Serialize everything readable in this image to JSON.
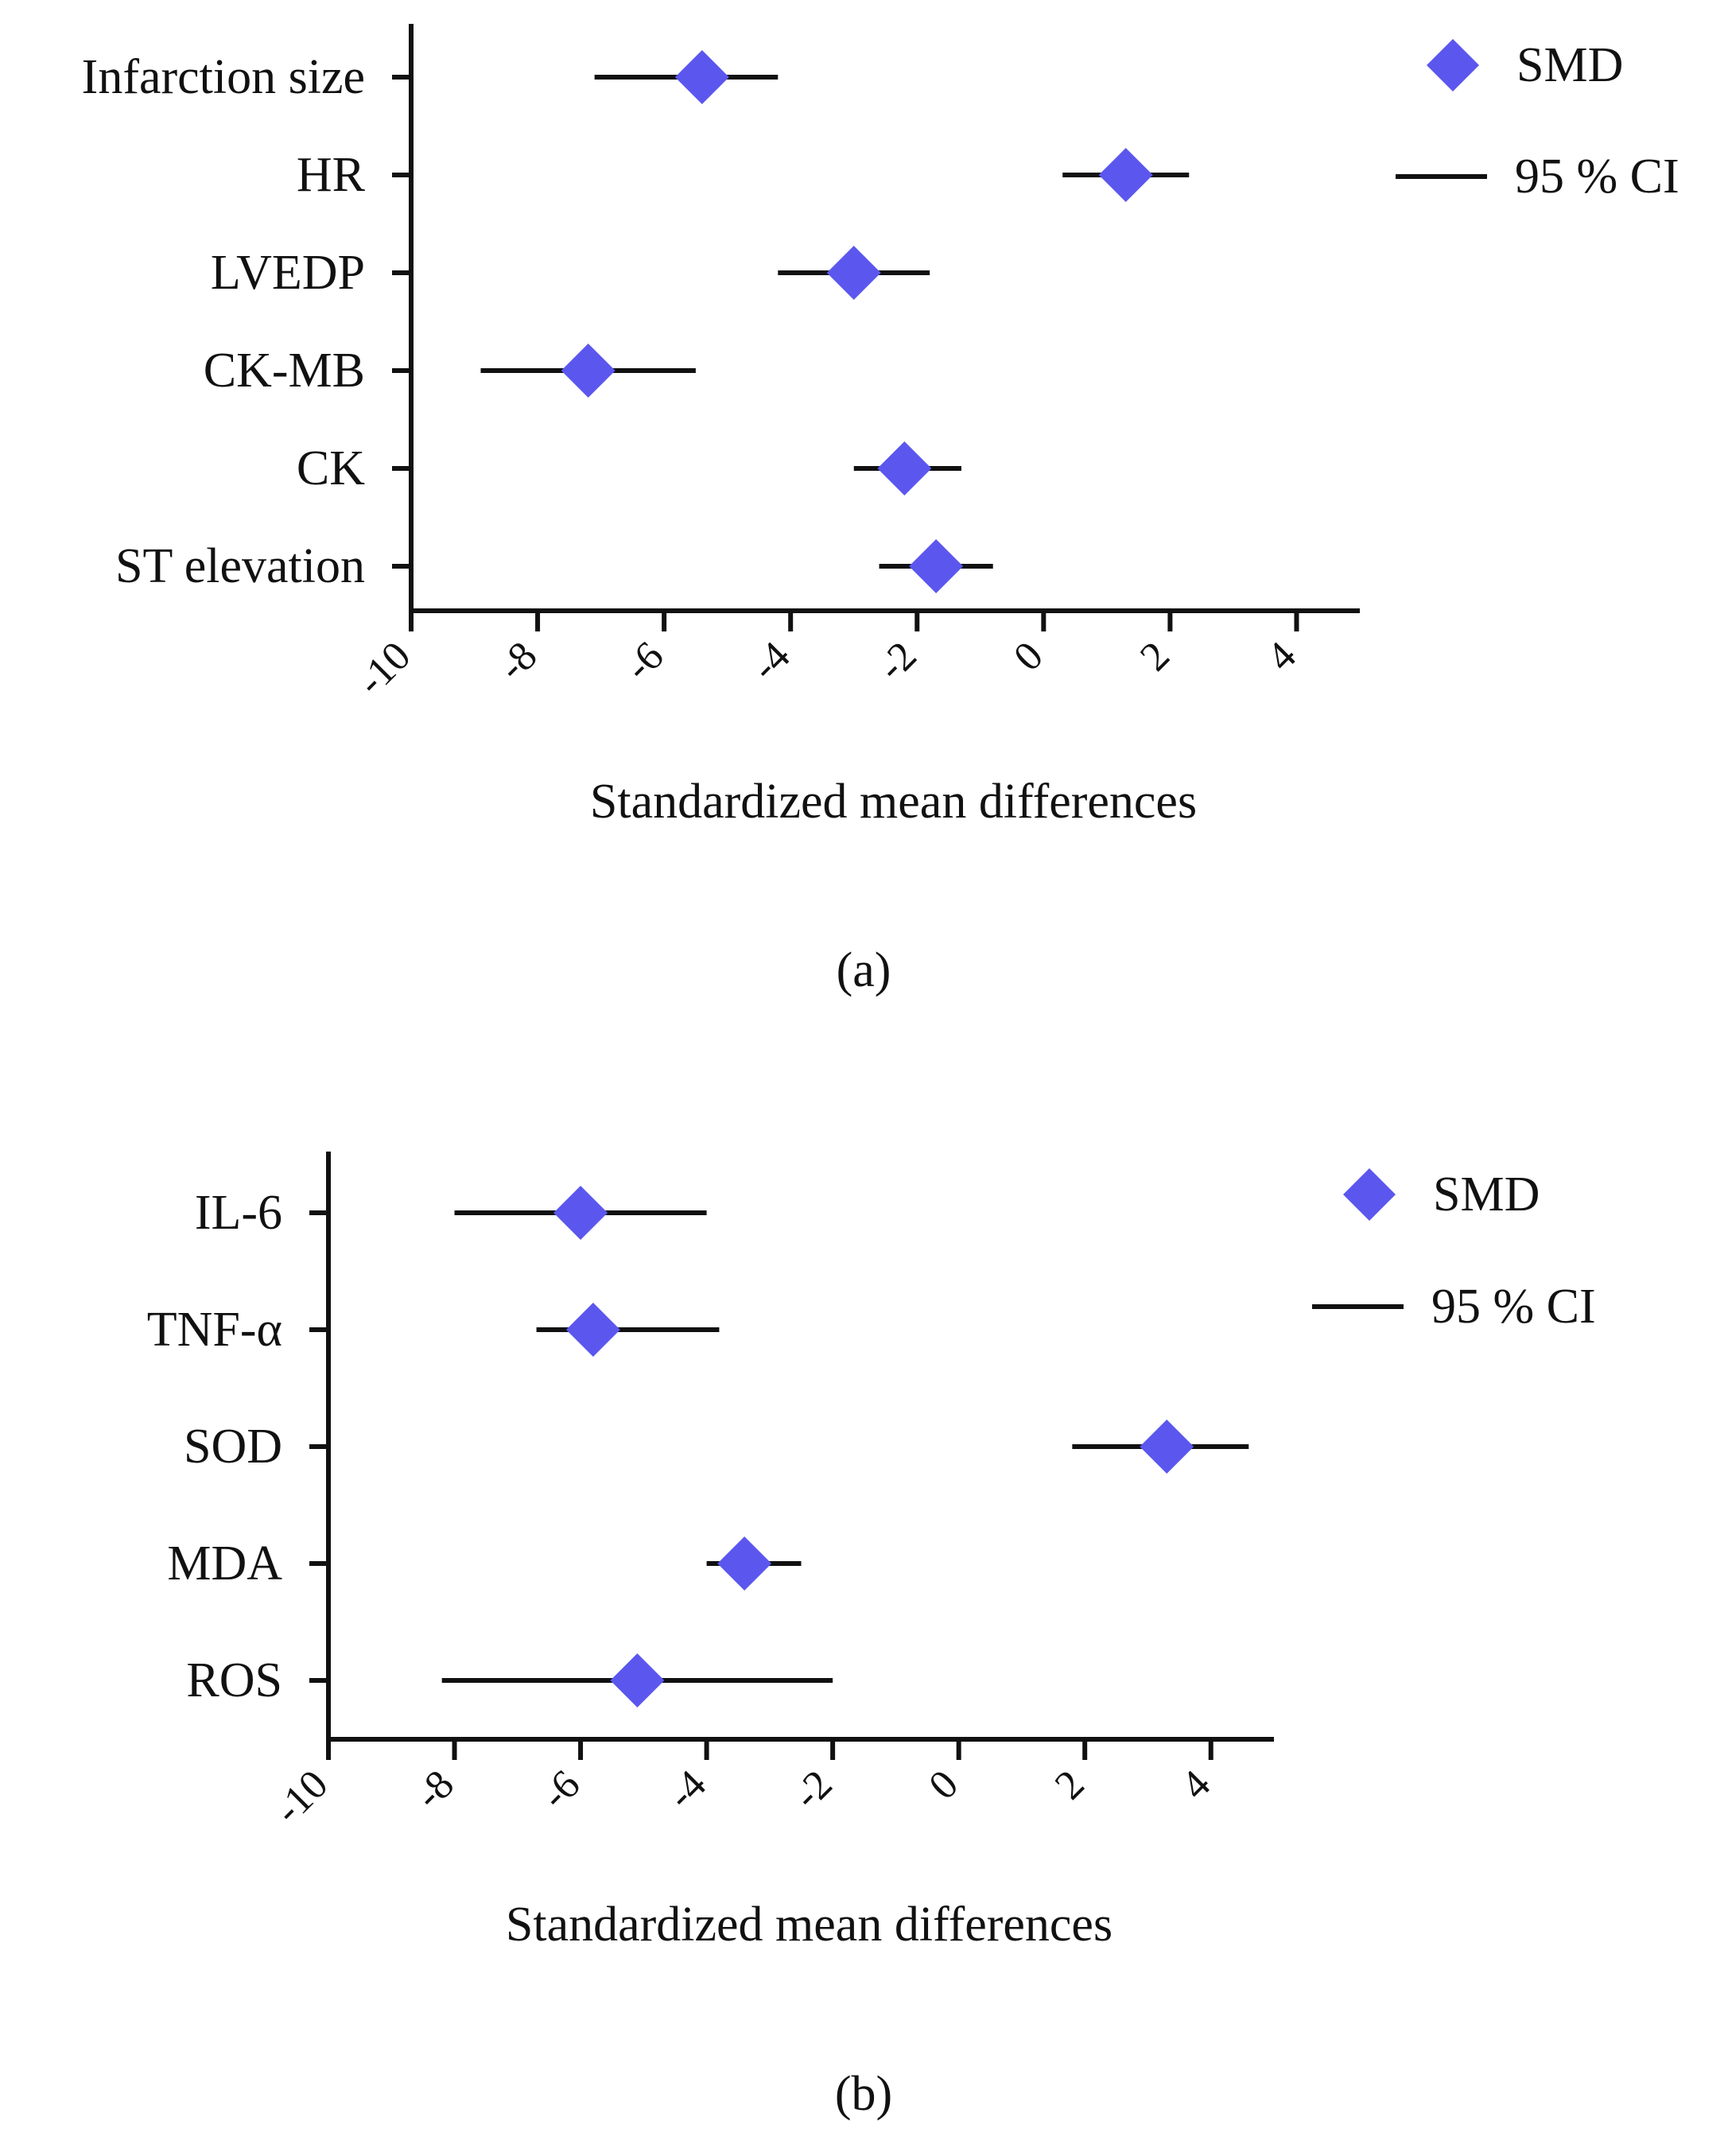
{
  "chart_data": [
    {
      "type": "forest",
      "panel_label": "(a)",
      "xlabel": "Standardized mean differences",
      "xlim": [
        -10,
        5
      ],
      "xticks": [
        -10,
        -8,
        -6,
        -4,
        -2,
        0,
        2,
        4
      ],
      "xtick_labels": [
        "-10",
        "-8",
        "-6",
        "-4",
        "-2",
        "0",
        "2",
        "4"
      ],
      "legend": {
        "position": "top-right",
        "point_label": "SMD",
        "line_label": "95 % CI"
      },
      "series": [
        {
          "name": "Infarction size",
          "smd": -5.4,
          "ci_low": -7.1,
          "ci_high": -4.2
        },
        {
          "name": "HR",
          "smd": 1.3,
          "ci_low": 0.3,
          "ci_high": 2.3
        },
        {
          "name": "LVEDP",
          "smd": -3.0,
          "ci_low": -4.2,
          "ci_high": -1.8
        },
        {
          "name": "CK-MB",
          "smd": -7.2,
          "ci_low": -8.9,
          "ci_high": -5.5
        },
        {
          "name": "CK",
          "smd": -2.2,
          "ci_low": -3.0,
          "ci_high": -1.3
        },
        {
          "name": "ST elevation",
          "smd": -1.7,
          "ci_low": -2.6,
          "ci_high": -0.8
        }
      ]
    },
    {
      "type": "forest",
      "panel_label": "(b)",
      "xlabel": "Standardized mean differences",
      "xlim": [
        -10,
        5
      ],
      "xticks": [
        -10,
        -8,
        -6,
        -4,
        -2,
        0,
        2,
        4
      ],
      "xtick_labels": [
        "-10",
        "-8",
        "-6",
        "-4",
        "-2",
        "0",
        "2",
        "4"
      ],
      "legend": {
        "position": "top-right",
        "point_label": "SMD",
        "line_label": "95 % CI"
      },
      "series": [
        {
          "name": "IL-6",
          "smd": -6.0,
          "ci_low": -8.0,
          "ci_high": -4.0
        },
        {
          "name": "TNF-α",
          "smd": -5.8,
          "ci_low": -6.7,
          "ci_high": -3.8
        },
        {
          "name": "SOD",
          "smd": 3.3,
          "ci_low": 1.8,
          "ci_high": 4.6
        },
        {
          "name": "MDA",
          "smd": -3.4,
          "ci_low": -4.0,
          "ci_high": -2.5
        },
        {
          "name": "ROS",
          "smd": -5.1,
          "ci_low": -8.2,
          "ci_high": -2.0
        }
      ]
    }
  ],
  "colors": {
    "point": "#5b57ee",
    "line": "#111111",
    "axis": "#111111"
  }
}
